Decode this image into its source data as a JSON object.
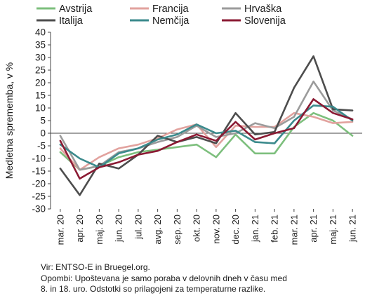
{
  "chart_data": {
    "type": "line",
    "ylabel": "Medletna sprememba, v %",
    "ylim": [
      -30,
      40
    ],
    "yticks": [
      -30,
      -25,
      -20,
      -15,
      -10,
      -5,
      0,
      5,
      10,
      15,
      20,
      25,
      30,
      35,
      40
    ],
    "categories": [
      "mar. 20",
      "apr. 20",
      "maj. 20",
      "jun. 20",
      "jul. 20",
      "avg. 20",
      "sep. 20",
      "okt. 20",
      "nov. 20",
      "dec. 20",
      "jan. 21",
      "feb. 21",
      "mar. 21",
      "apr. 21",
      "maj. 21",
      "jun. 21"
    ],
    "legend_position": "top",
    "series": [
      {
        "name": "Avstrija",
        "color": "#7dbf7d",
        "values": [
          -7.5,
          -14.5,
          -13,
          -9.5,
          -7.5,
          -6.5,
          -5.5,
          -4.5,
          -9.5,
          -0.5,
          -8,
          -8,
          2.5,
          8,
          5,
          -1
        ]
      },
      {
        "name": "Francija",
        "color": "#e2a29e",
        "values": [
          -6,
          -14.5,
          -9.5,
          -6,
          -4.5,
          -2,
          1.5,
          3.5,
          -5.5,
          3,
          2.5,
          2.5,
          8,
          6.5,
          4,
          4.5
        ]
      },
      {
        "name": "Hrvaška",
        "color": "#9b9b9b",
        "values": [
          -1,
          -14.5,
          -13,
          -7.5,
          -6,
          -3.5,
          -1.5,
          3,
          -1.5,
          0,
          4,
          2,
          6.5,
          20.5,
          9,
          5.5
        ]
      },
      {
        "name": "Italija",
        "color": "#4d4d4d",
        "values": [
          -14,
          -24.5,
          -12,
          -14,
          -8.5,
          -1,
          -3.5,
          -1.5,
          -4,
          8,
          -0.5,
          0.5,
          18,
          30.5,
          9.5,
          9
        ]
      },
      {
        "name": "Nemčija",
        "color": "#3b8a8c",
        "values": [
          -4.5,
          -10,
          -13.5,
          -8,
          -6,
          -2.5,
          -0.5,
          3.5,
          0,
          1,
          -3.5,
          -4,
          5,
          11,
          10.5,
          5
        ]
      },
      {
        "name": "Slovenija",
        "color": "#8b1a33",
        "values": [
          -3,
          -18,
          -13.5,
          -11.5,
          -8.5,
          -7,
          -3.5,
          -0.5,
          -3,
          4.5,
          -2.5,
          0,
          2,
          13.5,
          8,
          5.5
        ]
      }
    ]
  },
  "notes": {
    "source": "Vir: ENTSO-E in Bruegel.org.",
    "remark_line1": "Opombi: Upoštevana je samo poraba v delovnih dneh v času med",
    "remark_line2": "8. in 18. uro. Odstotki so prilagojeni za temperaturne razlike."
  }
}
